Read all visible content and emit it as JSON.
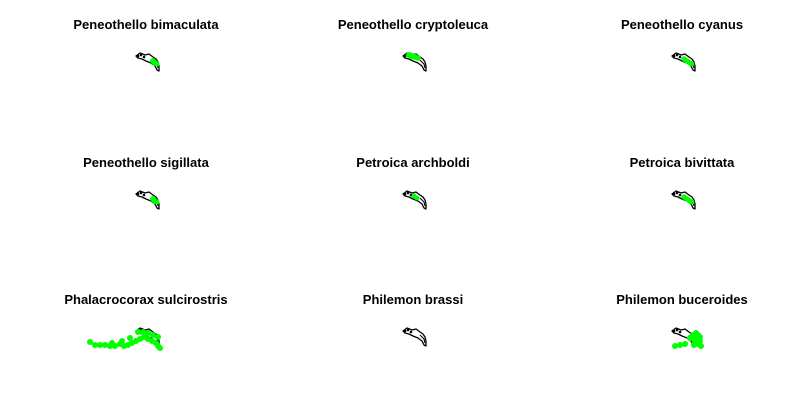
{
  "colors": {
    "background": "#ffffff",
    "outline": "#000000",
    "occurrence": "#00ff00"
  },
  "panels": [
    {
      "title": "Peneothello bimaculata",
      "range": "small-east"
    },
    {
      "title": "Peneothello cryptoleuca",
      "range": "west-center"
    },
    {
      "title": "Peneothello cyanus",
      "range": "central-band"
    },
    {
      "title": "Peneothello sigillata",
      "range": "small-east"
    },
    {
      "title": "Petroica archboldi",
      "range": "tiny-west"
    },
    {
      "title": "Petroica bivittata",
      "range": "central-band"
    },
    {
      "title": "Phalacrocorax sulcirostris",
      "range": "wide"
    },
    {
      "title": "Philemon brassi",
      "range": "none"
    },
    {
      "title": "Philemon buceroides",
      "range": "wide-east"
    }
  ]
}
